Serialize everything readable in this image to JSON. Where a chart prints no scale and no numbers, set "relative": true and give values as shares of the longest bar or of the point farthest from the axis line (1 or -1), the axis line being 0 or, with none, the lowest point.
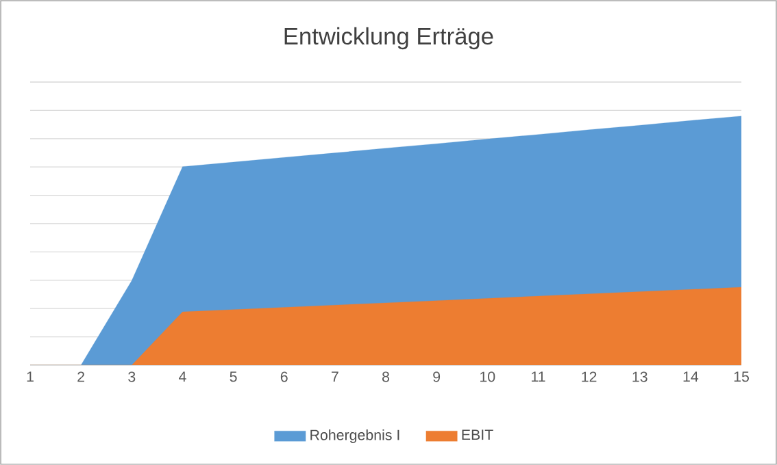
{
  "chart_data": {
    "type": "area",
    "title": "Entwicklung Erträge",
    "relative": true,
    "x": [
      1,
      2,
      3,
      4,
      5,
      6,
      7,
      8,
      9,
      10,
      11,
      12,
      13,
      14,
      15
    ],
    "xlim": [
      1,
      15
    ],
    "xticks": [
      1,
      2,
      3,
      4,
      5,
      6,
      7,
      8,
      9,
      10,
      11,
      12,
      13,
      14,
      15
    ],
    "grid": "y",
    "legend": "bottom",
    "series": [
      {
        "name": "Rohergebnis I",
        "color": "#5b9bd5",
        "values": [
          0,
          0,
          0.34,
          0.797,
          0.815,
          0.834,
          0.852,
          0.871,
          0.889,
          0.908,
          0.926,
          0.945,
          0.963,
          0.982,
          1
        ]
      },
      {
        "name": "EBIT",
        "color": "#ed7d31",
        "values": [
          0,
          0,
          0,
          0.214,
          0.223,
          0.232,
          0.241,
          0.25,
          0.259,
          0.268,
          0.277,
          0.286,
          0.295,
          0.304,
          0.313
        ]
      }
    ]
  }
}
